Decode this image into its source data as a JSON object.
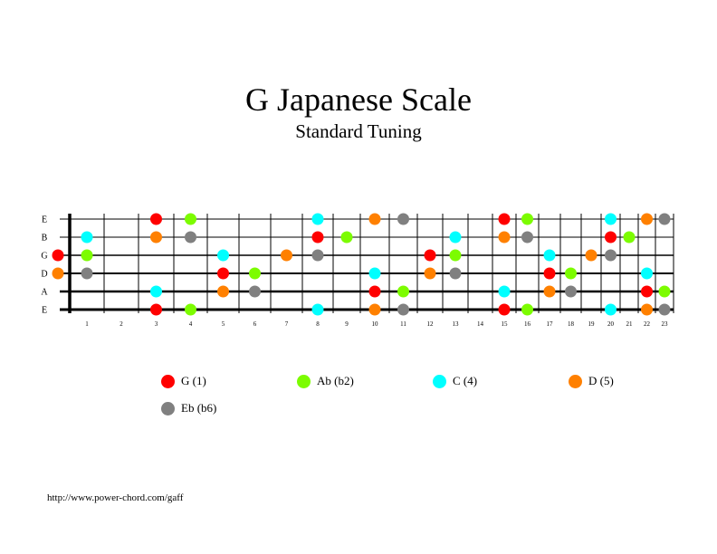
{
  "title": "G Japanese Scale",
  "subtitle": "Standard Tuning",
  "url": "http://www.power-chord.com/gaff",
  "strings": [
    "E",
    "B",
    "G",
    "D",
    "A",
    "E"
  ],
  "fret_numbers": [
    "1",
    "2",
    "3",
    "4",
    "5",
    "6",
    "7",
    "8",
    "9",
    "10",
    "11",
    "12",
    "13",
    "14",
    "15",
    "16",
    "17",
    "18",
    "19",
    "20",
    "21",
    "22",
    "23"
  ],
  "legend": [
    {
      "label": "G (1)",
      "color": "#ff0000"
    },
    {
      "label": "Ab (b2)",
      "color": "#7cfc00"
    },
    {
      "label": "C (4)",
      "color": "#00ffff"
    },
    {
      "label": "D (5)",
      "color": "#ff8000"
    },
    {
      "label": "Eb (b6)",
      "color": "#808080"
    }
  ],
  "notes": [
    {
      "string": 1,
      "fret": 3,
      "note": "G"
    },
    {
      "string": 1,
      "fret": 4,
      "note": "Ab"
    },
    {
      "string": 1,
      "fret": 8,
      "note": "C"
    },
    {
      "string": 1,
      "fret": 10,
      "note": "D"
    },
    {
      "string": 1,
      "fret": 11,
      "note": "Eb"
    },
    {
      "string": 1,
      "fret": 15,
      "note": "G"
    },
    {
      "string": 1,
      "fret": 16,
      "note": "Ab"
    },
    {
      "string": 1,
      "fret": 20,
      "note": "C"
    },
    {
      "string": 1,
      "fret": 22,
      "note": "D"
    },
    {
      "string": 1,
      "fret": 23,
      "note": "Eb"
    },
    {
      "string": 2,
      "fret": 1,
      "note": "C"
    },
    {
      "string": 2,
      "fret": 3,
      "note": "D"
    },
    {
      "string": 2,
      "fret": 4,
      "note": "Eb"
    },
    {
      "string": 2,
      "fret": 8,
      "note": "G"
    },
    {
      "string": 2,
      "fret": 9,
      "note": "Ab"
    },
    {
      "string": 2,
      "fret": 13,
      "note": "C"
    },
    {
      "string": 2,
      "fret": 15,
      "note": "D"
    },
    {
      "string": 2,
      "fret": 16,
      "note": "Eb"
    },
    {
      "string": 2,
      "fret": 20,
      "note": "G"
    },
    {
      "string": 2,
      "fret": 21,
      "note": "Ab"
    },
    {
      "string": 3,
      "fret": 0,
      "note": "G"
    },
    {
      "string": 3,
      "fret": 1,
      "note": "Ab"
    },
    {
      "string": 3,
      "fret": 5,
      "note": "C"
    },
    {
      "string": 3,
      "fret": 7,
      "note": "D"
    },
    {
      "string": 3,
      "fret": 8,
      "note": "Eb"
    },
    {
      "string": 3,
      "fret": 12,
      "note": "G"
    },
    {
      "string": 3,
      "fret": 13,
      "note": "Ab"
    },
    {
      "string": 3,
      "fret": 17,
      "note": "C"
    },
    {
      "string": 3,
      "fret": 19,
      "note": "D"
    },
    {
      "string": 3,
      "fret": 20,
      "note": "Eb"
    },
    {
      "string": 4,
      "fret": 0,
      "note": "D"
    },
    {
      "string": 4,
      "fret": 1,
      "note": "Eb"
    },
    {
      "string": 4,
      "fret": 5,
      "note": "G"
    },
    {
      "string": 4,
      "fret": 6,
      "note": "Ab"
    },
    {
      "string": 4,
      "fret": 10,
      "note": "C"
    },
    {
      "string": 4,
      "fret": 12,
      "note": "D"
    },
    {
      "string": 4,
      "fret": 13,
      "note": "Eb"
    },
    {
      "string": 4,
      "fret": 17,
      "note": "G"
    },
    {
      "string": 4,
      "fret": 18,
      "note": "Ab"
    },
    {
      "string": 4,
      "fret": 22,
      "note": "C"
    },
    {
      "string": 5,
      "fret": 3,
      "note": "C"
    },
    {
      "string": 5,
      "fret": 5,
      "note": "D"
    },
    {
      "string": 5,
      "fret": 6,
      "note": "Eb"
    },
    {
      "string": 5,
      "fret": 10,
      "note": "G"
    },
    {
      "string": 5,
      "fret": 11,
      "note": "Ab"
    },
    {
      "string": 5,
      "fret": 15,
      "note": "C"
    },
    {
      "string": 5,
      "fret": 17,
      "note": "D"
    },
    {
      "string": 5,
      "fret": 18,
      "note": "Eb"
    },
    {
      "string": 5,
      "fret": 22,
      "note": "G"
    },
    {
      "string": 5,
      "fret": 23,
      "note": "Ab"
    },
    {
      "string": 6,
      "fret": 3,
      "note": "G"
    },
    {
      "string": 6,
      "fret": 4,
      "note": "Ab"
    },
    {
      "string": 6,
      "fret": 8,
      "note": "C"
    },
    {
      "string": 6,
      "fret": 10,
      "note": "D"
    },
    {
      "string": 6,
      "fret": 11,
      "note": "Eb"
    },
    {
      "string": 6,
      "fret": 15,
      "note": "G"
    },
    {
      "string": 6,
      "fret": 16,
      "note": "Ab"
    },
    {
      "string": 6,
      "fret": 20,
      "note": "C"
    },
    {
      "string": 6,
      "fret": 22,
      "note": "D"
    },
    {
      "string": 6,
      "fret": 23,
      "note": "Eb"
    }
  ]
}
